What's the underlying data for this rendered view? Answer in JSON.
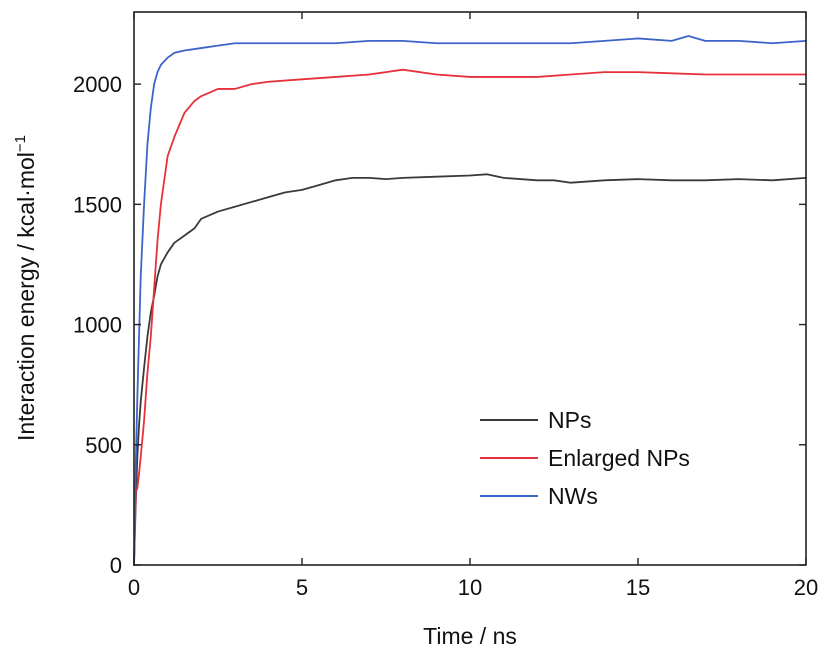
{
  "chart_data": {
    "type": "line",
    "title": "",
    "xlabel": "Time / ns",
    "ylabel": "Interaction energy / kcal·mol",
    "ylabel_superscript": "−1",
    "xlim": [
      0,
      20
    ],
    "ylim": [
      0,
      2300
    ],
    "xticks": [
      0,
      5,
      10,
      15,
      20
    ],
    "yticks": [
      0,
      500,
      1000,
      1500,
      2000
    ],
    "grid": false,
    "legend_position": "bottom-right",
    "series": [
      {
        "name": "NPs",
        "color": "#3a3a3a",
        "x": [
          0,
          0.05,
          0.1,
          0.15,
          0.2,
          0.3,
          0.4,
          0.5,
          0.6,
          0.7,
          0.8,
          1.0,
          1.2,
          1.5,
          1.8,
          2.0,
          2.5,
          3.0,
          3.5,
          4.0,
          4.5,
          5.0,
          5.5,
          6.0,
          6.5,
          7.0,
          7.5,
          8.0,
          9.0,
          10.0,
          10.5,
          11.0,
          12.0,
          12.5,
          13.0,
          14.0,
          15.0,
          16.0,
          17.0,
          18.0,
          19.0,
          20.0
        ],
        "y": [
          0,
          250,
          450,
          580,
          680,
          820,
          950,
          1050,
          1120,
          1200,
          1250,
          1300,
          1340,
          1370,
          1400,
          1440,
          1470,
          1490,
          1510,
          1530,
          1550,
          1560,
          1580,
          1600,
          1610,
          1610,
          1605,
          1610,
          1615,
          1620,
          1625,
          1610,
          1600,
          1600,
          1590,
          1600,
          1605,
          1600,
          1600,
          1605,
          1600,
          1610
        ]
      },
      {
        "name": "Enlarged NPs",
        "color": "#e8303a",
        "x": [
          0,
          0.05,
          0.1,
          0.15,
          0.2,
          0.3,
          0.4,
          0.5,
          0.6,
          0.7,
          0.8,
          1.0,
          1.2,
          1.5,
          1.8,
          2.0,
          2.5,
          3.0,
          3.5,
          4.0,
          5.0,
          6.0,
          7.0,
          7.5,
          8.0,
          9.0,
          10.0,
          11.0,
          12.0,
          13.0,
          14.0,
          15.0,
          16.0,
          17.0,
          18.0,
          19.0,
          20.0
        ],
        "y": [
          0,
          300,
          320,
          380,
          450,
          600,
          800,
          950,
          1150,
          1350,
          1500,
          1700,
          1780,
          1880,
          1930,
          1950,
          1980,
          1980,
          2000,
          2010,
          2020,
          2030,
          2040,
          2050,
          2060,
          2040,
          2030,
          2030,
          2030,
          2040,
          2050,
          2050,
          2045,
          2040,
          2040,
          2040,
          2040
        ]
      },
      {
        "name": "NWs",
        "color": "#3c64c8",
        "x": [
          0,
          0.05,
          0.1,
          0.15,
          0.2,
          0.3,
          0.4,
          0.5,
          0.6,
          0.7,
          0.8,
          1.0,
          1.2,
          1.5,
          2.0,
          2.5,
          3.0,
          4.0,
          5.0,
          6.0,
          7.0,
          8.0,
          9.0,
          10.0,
          11.0,
          12.0,
          13.0,
          14.0,
          15.0,
          16.0,
          16.5,
          17.0,
          18.0,
          19.0,
          20.0
        ],
        "y": [
          0,
          400,
          700,
          950,
          1200,
          1500,
          1750,
          1900,
          2000,
          2050,
          2080,
          2110,
          2130,
          2140,
          2150,
          2160,
          2170,
          2170,
          2170,
          2170,
          2180,
          2180,
          2170,
          2170,
          2170,
          2170,
          2170,
          2180,
          2190,
          2180,
          2200,
          2180,
          2180,
          2170,
          2180
        ]
      }
    ]
  }
}
